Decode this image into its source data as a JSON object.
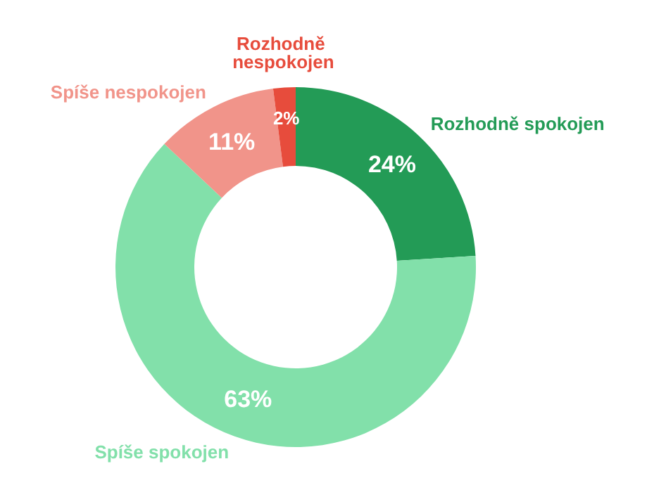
{
  "chart_data": {
    "type": "donut",
    "categories": [
      "Rozhodně spokojen",
      "Spíše spokojen",
      "Spíše nespokojen",
      "Rozhodně nespokojen"
    ],
    "values": [
      24,
      63,
      11,
      2
    ],
    "colors": [
      "#239b56",
      "#82e0aa",
      "#f1948a",
      "#e74c3c"
    ],
    "value_labels": [
      "24%",
      "63%",
      "11%",
      "2%"
    ],
    "legend": false
  }
}
